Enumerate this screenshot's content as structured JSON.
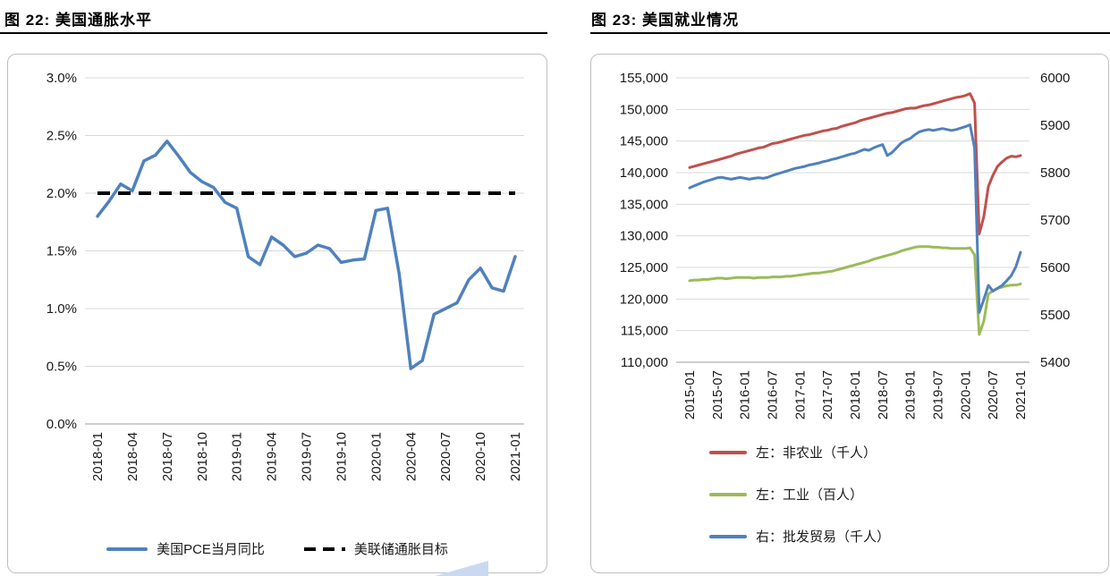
{
  "figures": [
    {
      "title": "图 22: 美国通胀水平",
      "chart_data": {
        "type": "line",
        "x_tick_labels": [
          "2018-01",
          "2018-04",
          "2018-07",
          "2018-10",
          "2019-01",
          "2019-04",
          "2019-07",
          "2019-10",
          "2020-01",
          "2020-04",
          "2020-07",
          "2020-10",
          "2021-01"
        ],
        "points_per_tick": 3,
        "y_ticks": [
          "3.0%",
          "2.5%",
          "2.0%",
          "1.5%",
          "1.0%",
          "0.5%",
          "0.0%"
        ],
        "ylim": [
          0,
          3
        ],
        "grid": true,
        "legend_position": "bottom",
        "series": [
          {
            "name": "美国PCE当月同比",
            "color": "#4F81BD",
            "style": "solid",
            "axis": "left",
            "values": [
              1.8,
              1.93,
              2.08,
              2.02,
              2.28,
              2.33,
              2.45,
              2.32,
              2.18,
              2.1,
              2.05,
              1.92,
              1.87,
              1.45,
              1.38,
              1.62,
              1.55,
              1.45,
              1.48,
              1.55,
              1.52,
              1.4,
              1.42,
              1.43,
              1.85,
              1.87,
              1.3,
              0.48,
              0.55,
              0.95,
              1.0,
              1.05,
              1.25,
              1.35,
              1.18,
              1.15,
              1.45
            ]
          },
          {
            "name": "美联储通胀目标",
            "color": "#000000",
            "style": "dashed",
            "axis": "left",
            "const_value": 2.0
          }
        ]
      }
    },
    {
      "title": "图 23: 美国就业情况",
      "chart_data": {
        "type": "line",
        "x_tick_labels": [
          "2015-01",
          "2015-07",
          "2016-01",
          "2016-07",
          "2017-01",
          "2017-07",
          "2018-01",
          "2018-07",
          "2019-01",
          "2019-07",
          "2020-01",
          "2020-07",
          "2021-01"
        ],
        "points_per_tick": 6,
        "left_y_ticks": [
          "155,000",
          "150,000",
          "145,000",
          "140,000",
          "135,000",
          "130,000",
          "125,000",
          "120,000",
          "115,000",
          "110,000"
        ],
        "left_ylim": [
          110000,
          155000
        ],
        "right_y_ticks": [
          "6000",
          "5900",
          "5800",
          "5700",
          "5600",
          "5500",
          "5400"
        ],
        "right_ylim": [
          5400,
          6000
        ],
        "grid": true,
        "legend_position": "bottom-stacked",
        "series": [
          {
            "name": "左：非农业（千人）",
            "color": "#C0504D",
            "style": "solid",
            "axis": "left",
            "values": [
              140800,
              141000,
              141200,
              141400,
              141600,
              141800,
              142000,
              142200,
              142400,
              142600,
              142900,
              143100,
              143300,
              143500,
              143700,
              143900,
              144000,
              144300,
              144600,
              144700,
              144900,
              145100,
              145300,
              145500,
              145700,
              145900,
              146000,
              146200,
              146400,
              146600,
              146700,
              146900,
              147000,
              147300,
              147500,
              147700,
              147900,
              148200,
              148400,
              148600,
              148800,
              149000,
              149200,
              149400,
              149500,
              149700,
              149900,
              150100,
              150200,
              150200,
              150400,
              150600,
              150700,
              150900,
              151100,
              151300,
              151500,
              151700,
              151900,
              152000,
              152200,
              152500,
              151000,
              130300,
              133000,
              137800,
              139600,
              141000,
              141700,
              142300,
              142600,
              142500,
              142700
            ]
          },
          {
            "name": "左：工业（百人）",
            "color": "#9BBB59",
            "style": "solid",
            "axis": "left",
            "values": [
              122900,
              123000,
              123000,
              123100,
              123100,
              123200,
              123300,
              123300,
              123200,
              123300,
              123400,
              123400,
              123400,
              123400,
              123300,
              123400,
              123400,
              123400,
              123500,
              123500,
              123500,
              123600,
              123600,
              123700,
              123800,
              123900,
              124000,
              124100,
              124100,
              124200,
              124300,
              124400,
              124600,
              124800,
              125000,
              125200,
              125400,
              125600,
              125800,
              126000,
              126300,
              126500,
              126700,
              126900,
              127100,
              127300,
              127600,
              127800,
              128000,
              128200,
              128300,
              128300,
              128300,
              128200,
              128200,
              128100,
              128100,
              128000,
              128000,
              128000,
              128000,
              128100,
              127000,
              114400,
              116500,
              120800,
              121300,
              121700,
              121900,
              122100,
              122200,
              122200,
              122400
            ]
          },
          {
            "name": "右：批发贸易（千人）",
            "color": "#4F81BD",
            "style": "solid",
            "axis": "right",
            "values": [
              5768,
              5772,
              5776,
              5780,
              5783,
              5786,
              5789,
              5790,
              5788,
              5786,
              5788,
              5790,
              5788,
              5786,
              5788,
              5789,
              5788,
              5790,
              5794,
              5797,
              5800,
              5803,
              5806,
              5809,
              5811,
              5813,
              5816,
              5818,
              5820,
              5823,
              5825,
              5828,
              5830,
              5833,
              5836,
              5839,
              5841,
              5845,
              5849,
              5847,
              5852,
              5856,
              5859,
              5836,
              5842,
              5852,
              5862,
              5868,
              5872,
              5880,
              5886,
              5889,
              5891,
              5889,
              5891,
              5893,
              5891,
              5889,
              5891,
              5894,
              5897,
              5901,
              5852,
              5505,
              5532,
              5562,
              5550,
              5556,
              5562,
              5572,
              5583,
              5602,
              5632
            ]
          }
        ]
      }
    }
  ],
  "palette": {
    "grid": "#d9d9d9",
    "axis": "#9e9e9e",
    "box_border": "#bfbfbf",
    "title_rule": "#000000",
    "watermark": "#c9daf0"
  }
}
